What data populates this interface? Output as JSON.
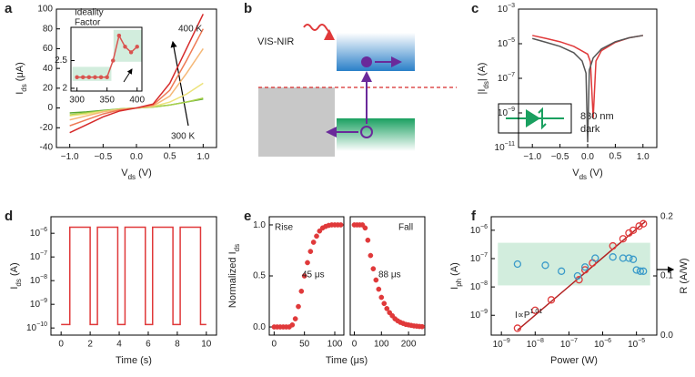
{
  "chart_data": [
    {
      "panel": "a",
      "type": "line",
      "xlabel": [
        "V",
        "ds",
        " (V)"
      ],
      "ylabel": [
        "I",
        "ds",
        " (μA)"
      ],
      "xlim": [
        -1.2,
        1.2
      ],
      "xticks": [
        {
          "value": -1,
          "label": "−1.0"
        },
        {
          "value": -0.5,
          "label": "−0.5"
        },
        {
          "value": 0,
          "label": "0.0"
        },
        0.5,
        {
          "value": 1,
          "label": "1.0"
        }
      ],
      "ylim": [
        -40,
        100
      ],
      "yticks": [
        -40,
        -20,
        0,
        20,
        40,
        60,
        80,
        100
      ],
      "x": [
        -1,
        -0.75,
        -0.5,
        -0.25,
        0,
        0.25,
        0.5,
        0.75,
        1
      ],
      "series": [
        {
          "color": "#5aa832",
          "mode": "lines",
          "values": [
            -5,
            -4,
            -2.5,
            -1,
            0,
            1,
            3,
            6,
            9
          ]
        },
        {
          "color": "#a8d04a",
          "mode": "lines",
          "values": [
            -7,
            -5,
            -3,
            -1,
            0,
            1,
            3,
            6,
            10
          ]
        },
        {
          "color": "#ece27a",
          "mode": "lines",
          "values": [
            -8,
            -6,
            -3.5,
            -1.5,
            0,
            1.5,
            6,
            14,
            25
          ]
        },
        {
          "color": "#f5b878",
          "mode": "lines",
          "values": [
            -12,
            -8,
            -4,
            -1.5,
            0,
            2,
            12,
            35,
            60
          ]
        },
        {
          "color": "#ee7a55",
          "mode": "lines",
          "values": [
            -18,
            -12,
            -6,
            -2,
            0,
            3,
            18,
            48,
            80
          ]
        },
        {
          "color": "#d62a2a",
          "mode": "lines",
          "values": [
            -25,
            -17,
            -9,
            -3,
            0,
            4,
            25,
            60,
            95
          ]
        }
      ],
      "annotations": [
        "400 K",
        "300 K"
      ]
    },
    {
      "type": "line",
      "title": [
        "Ideality",
        "Factor"
      ],
      "xlim": [
        290,
        408
      ],
      "xticks": [
        300,
        350,
        400
      ],
      "ylim": [
        1.95,
        3.1
      ],
      "yticks": [
        2,
        2.5
      ],
      "x": [
        300,
        310,
        320,
        330,
        340,
        350,
        360,
        370,
        380,
        390,
        400
      ],
      "series": [
        {
          "color": "#d9534f",
          "mode": "lines+markers",
          "marker": "filled",
          "values": [
            2.2,
            2.2,
            2.2,
            2.2,
            2.2,
            2.2,
            2.5,
            2.95,
            2.75,
            2.65,
            2.75
          ]
        }
      ]
    },
    {
      "panel": "b",
      "type": "diagram",
      "label": "VIS-NIR"
    },
    {
      "panel": "c",
      "type": "line",
      "xlabel": [
        "V",
        "ds",
        " (V)"
      ],
      "ylabel": [
        "|I",
        "ds",
        "| (A)"
      ],
      "xlim": [
        -1.25,
        1.25
      ],
      "xticks": [
        {
          "value": -1,
          "label": "−1.0"
        },
        {
          "value": -0.5,
          "label": "−0.5"
        },
        {
          "value": 0,
          "label": "0.0"
        },
        0.5,
        {
          "value": 1,
          "label": "1.0"
        }
      ],
      "ylog": true,
      "ylim": [
        1e-11,
        0.001
      ],
      "yticks": [
        {
          "value": 1e-11,
          "label": "10",
          "sup": "−11"
        },
        {
          "value": 1e-09,
          "label": "10",
          "sup": "−9"
        },
        {
          "value": 1e-07,
          "label": "10",
          "sup": "−7"
        },
        {
          "value": 1e-05,
          "label": "10",
          "sup": "−5"
        },
        {
          "value": 0.001,
          "label": "10",
          "sup": "−3"
        }
      ],
      "series": [
        {
          "name": "830 nm",
          "color": "#e0393a",
          "mode": "lines",
          "x": [
            -1,
            -0.75,
            -0.5,
            -0.25,
            0,
            0.05,
            0.1,
            0.15,
            0.25,
            0.5,
            0.75,
            1
          ],
          "values": [
            3e-05,
            2e-05,
            1.3e-05,
            7e-06,
            2.5e-06,
            9e-07,
            5e-10,
            1e-06,
            4e-06,
            1.2e-05,
            2.2e-05,
            3e-05
          ]
        },
        {
          "name": "dark",
          "color": "#555555",
          "mode": "lines",
          "x": [
            -1,
            -0.75,
            -0.5,
            -0.25,
            -0.1,
            -0.03,
            0,
            0.03,
            0.1,
            0.25,
            0.5,
            0.75,
            1
          ],
          "values": [
            2e-05,
            1.2e-05,
            7e-06,
            3e-06,
            1e-06,
            2e-07,
            2e-11,
            3e-07,
            1.5e-06,
            5e-06,
            1.3e-05,
            2.2e-05,
            3e-05
          ]
        }
      ]
    },
    {
      "panel": "d",
      "type": "line",
      "xlabel": [
        "Time (s)"
      ],
      "ylabel": [
        "I",
        "ds",
        " (A)"
      ],
      "xlim": [
        -0.7,
        10.7
      ],
      "xticks": [
        0,
        2,
        4,
        6,
        8,
        10
      ],
      "ylog": true,
      "ylim": [
        5e-11,
        5e-06
      ],
      "yticks": [
        {
          "value": 1e-10,
          "label": "10",
          "sup": "−10"
        },
        {
          "value": 1e-09,
          "label": "10",
          "sup": "−9"
        },
        {
          "value": 1e-08,
          "label": "10",
          "sup": "−8"
        },
        {
          "value": 1e-07,
          "label": "10",
          "sup": "−7"
        },
        {
          "value": 1e-06,
          "label": "10",
          "sup": "−6"
        }
      ],
      "x": [
        0,
        0.6,
        0.6,
        2.0,
        2.0,
        2.5,
        2.5,
        3.9,
        3.9,
        4.4,
        4.4,
        5.8,
        5.8,
        6.3,
        6.3,
        7.7,
        7.7,
        8.2,
        8.2,
        9.6,
        9.6,
        10
      ],
      "series": [
        {
          "color": "#e0393a",
          "mode": "lines",
          "values": [
            1.4e-10,
            1.4e-10,
            1.8e-06,
            1.8e-06,
            1.4e-10,
            1.4e-10,
            1.8e-06,
            1.8e-06,
            1.4e-10,
            1.4e-10,
            1.8e-06,
            1.8e-06,
            1.4e-10,
            1.4e-10,
            1.8e-06,
            1.8e-06,
            1.4e-10,
            1.4e-10,
            1.8e-06,
            1.8e-06,
            1.4e-10,
            1.4e-10
          ]
        }
      ]
    },
    {
      "panel": "e",
      "type": "scatter",
      "xlabel": [
        "Time (μs)"
      ],
      "ylabel": [
        "Normalized I",
        "ds"
      ],
      "xlim": [
        -8,
        115
      ],
      "xticks": [
        0,
        50,
        100
      ],
      "ylim": [
        -0.08,
        1.08
      ],
      "yticks": [
        {
          "value": 0,
          "label": "0.0"
        },
        0.5,
        {
          "value": 1,
          "label": "1.0"
        }
      ],
      "x": [
        0,
        5,
        10,
        15,
        20,
        25,
        30,
        35,
        40,
        45,
        50,
        55,
        60,
        65,
        70,
        75,
        80,
        85,
        90,
        95,
        100,
        105,
        110
      ],
      "series": [
        {
          "color": "#e0393a",
          "mode": "markers",
          "marker": "filled",
          "values": [
            0,
            0,
            0,
            0,
            0,
            0,
            0.02,
            0.08,
            0.2,
            0.35,
            0.5,
            0.63,
            0.74,
            0.83,
            0.89,
            0.94,
            0.97,
            0.985,
            0.995,
            1,
            1,
            1,
            1
          ]
        }
      ],
      "annotations": [
        "Rise",
        "45 μs"
      ]
    },
    {
      "type": "scatter",
      "xlim": [
        -15,
        260
      ],
      "xticks": [
        0,
        100,
        200
      ],
      "ylim": [
        -0.08,
        1.08
      ],
      "x": [
        0,
        10,
        20,
        30,
        40,
        50,
        60,
        70,
        80,
        90,
        100,
        110,
        120,
        130,
        140,
        150,
        160,
        170,
        180,
        190,
        200,
        210,
        220,
        230,
        240,
        250
      ],
      "series": [
        {
          "color": "#e0393a",
          "mode": "markers",
          "marker": "filled",
          "values": [
            1,
            1,
            1,
            1,
            0.97,
            0.85,
            0.7,
            0.57,
            0.46,
            0.37,
            0.29,
            0.23,
            0.18,
            0.14,
            0.11,
            0.08,
            0.06,
            0.045,
            0.035,
            0.025,
            0.02,
            0.015,
            0.01,
            0.008,
            0.005,
            0.003
          ]
        }
      ],
      "annotations": [
        "Fall",
        "88 μs"
      ]
    },
    {
      "panel": "f",
      "type": "scatter",
      "xlabel": [
        "Power (W)"
      ],
      "ylabel": [
        "I",
        "ph",
        " (A)"
      ],
      "y2label": [
        "R (A/W)"
      ],
      "xlog": true,
      "xlim": [
        5e-10,
        4e-05
      ],
      "xticks": [
        {
          "value": 1e-09,
          "label": "10",
          "sup": "−9"
        },
        {
          "value": 1e-08,
          "label": "10",
          "sup": "−8"
        },
        {
          "value": 1e-07,
          "label": "10",
          "sup": "−7"
        },
        {
          "value": 1e-06,
          "label": "10",
          "sup": "−6"
        },
        {
          "value": 1e-05,
          "label": "10",
          "sup": "−5"
        }
      ],
      "ylog": true,
      "ylim": [
        2e-10,
        3e-06
      ],
      "yticks": [
        {
          "value": 1e-09,
          "label": "10",
          "sup": "−9"
        },
        {
          "value": 1e-08,
          "label": "10",
          "sup": "−8"
        },
        {
          "value": 1e-07,
          "label": "10",
          "sup": "−7"
        },
        {
          "value": 1e-06,
          "label": "10",
          "sup": "−6"
        }
      ],
      "y2lim": [
        0,
        0.2
      ],
      "y2ticks": [
        {
          "value": 0,
          "label": "0.0"
        },
        0.1,
        0.2
      ],
      "series": [
        {
          "color": "#b22222",
          "mode": "lines",
          "x": [
            3e-09,
            1.8e-05
          ],
          "values": [
            3e-10,
            2e-06
          ]
        },
        {
          "color": "#e0393a",
          "mode": "markers",
          "marker": "open",
          "x": [
            3e-09,
            1e-08,
            3e-08,
            2e-07,
            3e-07,
            5e-07,
            2e-06,
            4e-06,
            6e-06,
            8e-06,
            1.2e-05,
            1.6e-05
          ],
          "values": [
            3.5e-10,
            1.5e-09,
            3.5e-09,
            1.8e-08,
            4e-08,
            7e-08,
            2.8e-07,
            5e-07,
            8e-07,
            1e-06,
            1.4e-06,
            1.7e-06
          ]
        },
        {
          "color": "#3a9ac9",
          "mode": "markers",
          "marker": "open",
          "axis": "y2",
          "x": [
            3e-09,
            2e-08,
            6e-08,
            1.8e-07,
            3e-07,
            6e-07,
            2e-06,
            4e-06,
            6e-06,
            8e-06,
            1e-05,
            1.3e-05,
            1.6e-05
          ],
          "values": [
            0.12,
            0.118,
            0.108,
            0.1,
            0.115,
            0.13,
            0.132,
            0.13,
            0.13,
            0.128,
            0.11,
            0.108,
            0.108
          ]
        }
      ],
      "annotations": [
        {
          "text": "I∝P",
          "sup": "1.01"
        }
      ]
    }
  ]
}
